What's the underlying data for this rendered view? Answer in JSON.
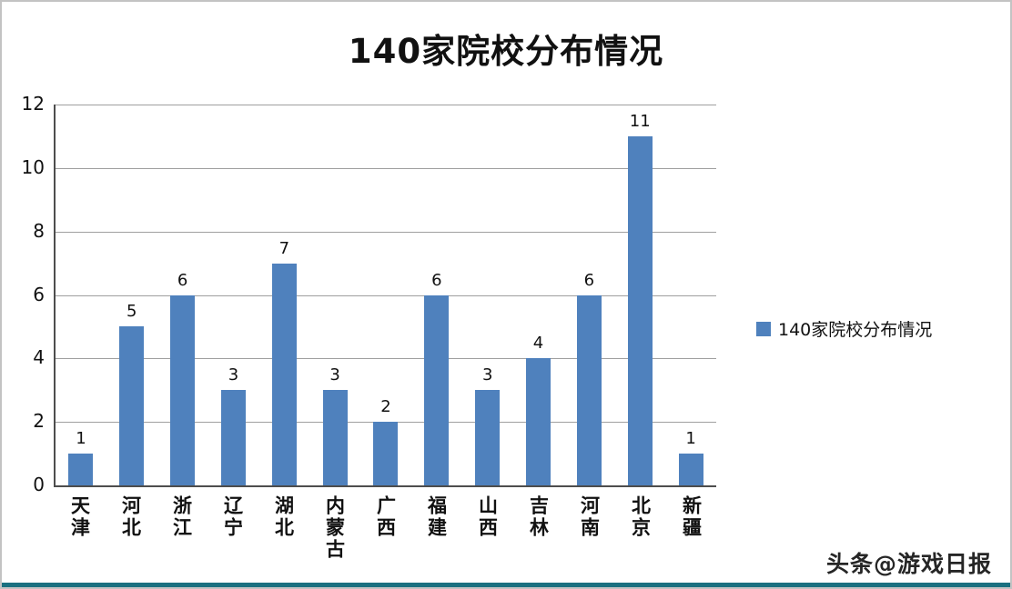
{
  "chart_data": {
    "type": "bar",
    "title": "140家院校分布情况",
    "categories": [
      "天津",
      "河北",
      "浙江",
      "辽宁",
      "湖北",
      "内蒙古",
      "广西",
      "福建",
      "山西",
      "吉林",
      "河南",
      "北京",
      "新疆"
    ],
    "values": [
      1,
      5,
      6,
      3,
      7,
      3,
      2,
      6,
      3,
      4,
      6,
      11,
      1
    ],
    "xlabel": "",
    "ylabel": "",
    "ylim": [
      0,
      12
    ],
    "ytick_step": 2,
    "yticks": [
      0,
      2,
      4,
      6,
      8,
      10,
      12
    ],
    "grid": true,
    "data_labels": true,
    "bar_color": "#4F81BD",
    "legend": {
      "label": "140家院校分布情况",
      "position": "right"
    }
  },
  "watermark": "头条@游戏日报"
}
